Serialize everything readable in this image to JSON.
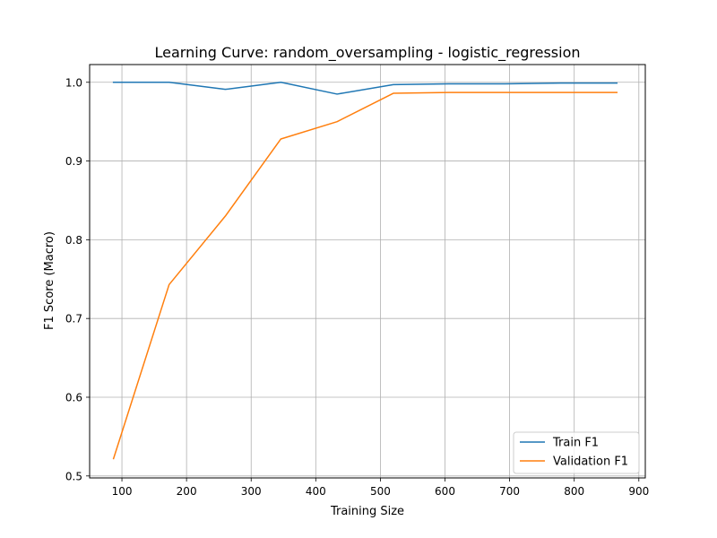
{
  "chart_data": {
    "type": "line",
    "title": "Learning Curve: random_oversampling - logistic_regression",
    "xlabel": "Training Size",
    "ylabel": "F1 Score (Macro)",
    "xlim": [
      50,
      910
    ],
    "ylim": [
      0.4975,
      1.0225
    ],
    "xticks": [
      100,
      200,
      300,
      400,
      500,
      600,
      700,
      800,
      900
    ],
    "yticks": [
      0.5,
      0.6,
      0.7,
      0.8,
      0.9,
      1.0
    ],
    "ytick_labels": [
      "0.5",
      "0.6",
      "0.7",
      "0.8",
      "0.9",
      "1.0"
    ],
    "grid": true,
    "legend_position": "lower-right",
    "x": [
      87,
      173,
      260,
      346,
      433,
      520,
      606,
      693,
      779,
      866
    ],
    "series": [
      {
        "name": "Train F1",
        "color": "#1f77b4",
        "values": [
          1.0,
          1.0,
          0.991,
          1.0,
          0.985,
          0.997,
          0.998,
          0.998,
          0.999,
          0.999
        ]
      },
      {
        "name": "Validation F1",
        "color": "#ff7f0e",
        "values": [
          0.522,
          0.743,
          0.83,
          0.928,
          0.95,
          0.986,
          0.987,
          0.987,
          0.987,
          0.987
        ]
      }
    ]
  }
}
